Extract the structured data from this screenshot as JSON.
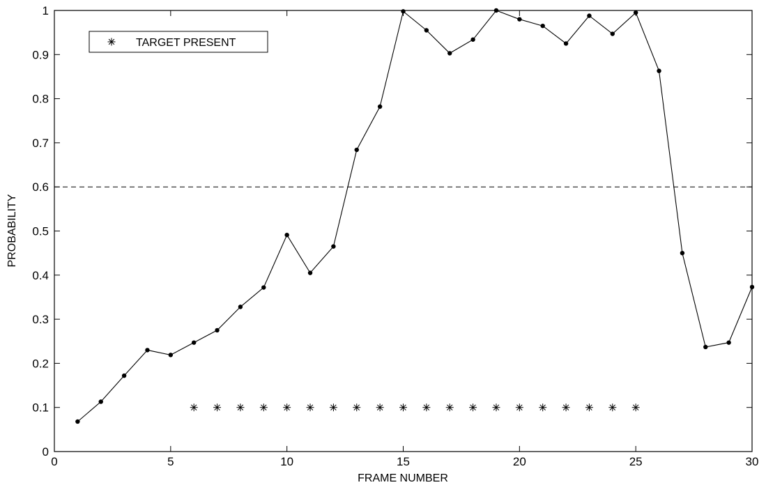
{
  "chart_data": {
    "type": "line",
    "title": "",
    "xlabel": "FRAME NUMBER",
    "ylabel": "PROBABILITY",
    "xlim": [
      0,
      30
    ],
    "ylim": [
      0,
      1
    ],
    "xticks": [
      0,
      5,
      10,
      15,
      20,
      25,
      30
    ],
    "yticks": [
      0,
      0.1,
      0.2,
      0.3,
      0.4,
      0.5,
      0.6,
      0.7,
      0.8,
      0.9,
      1
    ],
    "grid": false,
    "legend": {
      "position": "top-left",
      "entries": [
        "TARGET PRESENT"
      ]
    },
    "threshold": {
      "y": 0.6,
      "style": "dashed"
    },
    "series": [
      {
        "style": "line-with-dots",
        "x": [
          1,
          2,
          3,
          4,
          5,
          6,
          7,
          8,
          9,
          10,
          11,
          12,
          13,
          14,
          15,
          16,
          17,
          18,
          19,
          20,
          21,
          22,
          23,
          24,
          25,
          26,
          27,
          28,
          29,
          30
        ],
        "y": [
          0.068,
          0.113,
          0.172,
          0.23,
          0.219,
          0.247,
          0.275,
          0.328,
          0.372,
          0.491,
          0.405,
          0.465,
          0.684,
          0.782,
          0.998,
          0.955,
          0.903,
          0.934,
          1.0,
          0.98,
          0.965,
          0.925,
          0.988,
          0.947,
          0.995,
          0.863,
          0.45,
          0.237,
          0.247,
          0.373
        ]
      },
      {
        "name": "TARGET PRESENT",
        "style": "star-markers",
        "x": [
          6,
          7,
          8,
          9,
          10,
          11,
          12,
          13,
          14,
          15,
          16,
          17,
          18,
          19,
          20,
          21,
          22,
          23,
          24,
          25
        ],
        "y": [
          0.1,
          0.1,
          0.1,
          0.1,
          0.1,
          0.1,
          0.1,
          0.1,
          0.1,
          0.1,
          0.1,
          0.1,
          0.1,
          0.1,
          0.1,
          0.1,
          0.1,
          0.1,
          0.1,
          0.1
        ]
      }
    ]
  }
}
